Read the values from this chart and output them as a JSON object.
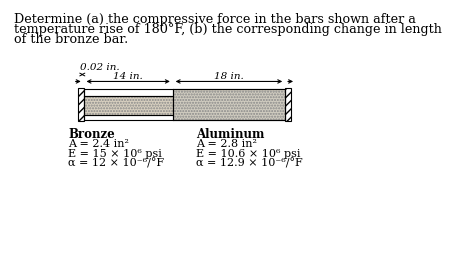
{
  "title_line1": "Determine (a) the compressive force in the bars shown after a",
  "title_line2": "temperature rise of 180°F, (b) the corresponding change in length",
  "title_line3": "of the bronze bar.",
  "gap_label": "0.02 in.",
  "bronze_length_label": "14 in.",
  "aluminum_length_label": "18 in.",
  "bronze_header": "Bronze",
  "bronze_A": "A = 2.4 in²",
  "bronze_E": "E = 15 × 10⁶ psi",
  "bronze_alpha": "α = 12 × 10⁻⁶/°F",
  "aluminum_header": "Aluminum",
  "aluminum_A": "A = 2.8 in²",
  "aluminum_E": "E = 10.6 × 10⁶ psi",
  "aluminum_alpha": "α = 12.9 × 10⁻⁶/°F",
  "bg_color": "#ffffff",
  "text_color": "#000000",
  "bronze_bar_color": "#d8d0c0",
  "alum_bar_color": "#d0ccc0",
  "wall_hatch_color": "#555555"
}
